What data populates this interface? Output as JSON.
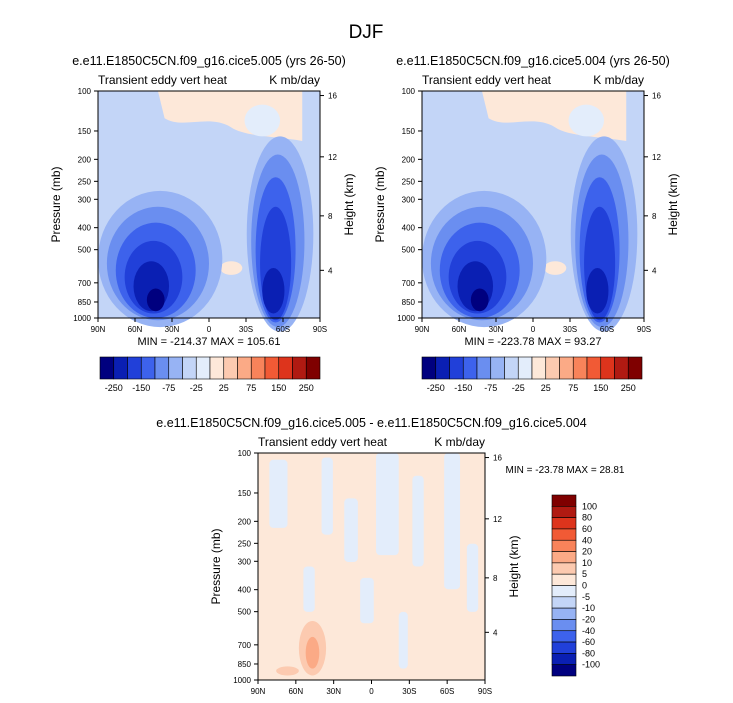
{
  "figure": {
    "title": "DJF"
  },
  "colors": {
    "absolute_scale": [
      "#00007f",
      "#0a1fb3",
      "#2140d9",
      "#3d62ec",
      "#6a8ef0",
      "#97b3f4",
      "#c3d5f7",
      "#e3edfb",
      "#fde8d9",
      "#fccab0",
      "#fbaa86",
      "#f8835a",
      "#f15a35",
      "#dd341c",
      "#b01a12",
      "#7f0000"
    ],
    "difference_scale": [
      "#00007f",
      "#0a1fb3",
      "#2140d9",
      "#3d62ec",
      "#6a8ef0",
      "#97b3f4",
      "#c3d5f7",
      "#e3edfb",
      "#fde8d9",
      "#fccab0",
      "#fbaa86",
      "#f8835a",
      "#f15a35",
      "#dd341c",
      "#b01a12",
      "#7f0000"
    ]
  },
  "colorbars": {
    "absolute": {
      "labels": [
        "-250",
        "-150",
        "-75",
        "-25",
        "25",
        "75",
        "150",
        "250"
      ]
    },
    "difference": {
      "labels": [
        "100",
        "80",
        "60",
        "40",
        "20",
        "10",
        "5",
        "0",
        "-5",
        "-10",
        "-20",
        "-40",
        "-60",
        "-80",
        "-100"
      ]
    }
  },
  "chart_data": [
    {
      "type": "heatmap",
      "title": "e.e11.E1850C5CN.f09_g16.cice5.005 (yrs 26-50)",
      "left_label": "Transient eddy vert heat",
      "right_label": "K mb/day",
      "xlabel": "",
      "ylabel": "Pressure (mb)",
      "ylabel_right": "Height (km)",
      "x_ticks": [
        "90N",
        "60N",
        "30N",
        "0",
        "30S",
        "60S",
        "90S"
      ],
      "y_ticks": [
        "100",
        "150",
        "200",
        "250",
        "300",
        "400",
        "500",
        "700",
        "850",
        "1000"
      ],
      "y_ticks_right": [
        "16",
        "12",
        "8",
        "4"
      ],
      "ylim": [
        1000,
        100
      ],
      "log_y": true,
      "stats": "MIN = -214.37   MAX = 105.61",
      "min": -214.37,
      "max": 105.61
    },
    {
      "type": "heatmap",
      "title": "e.e11.E1850C5CN.f09_g16.cice5.004 (yrs 26-50)",
      "left_label": "Transient eddy vert heat",
      "right_label": "K mb/day",
      "xlabel": "",
      "ylabel": "Pressure (mb)",
      "ylabel_right": "Height (km)",
      "x_ticks": [
        "90N",
        "60N",
        "30N",
        "0",
        "30S",
        "60S",
        "90S"
      ],
      "y_ticks": [
        "100",
        "150",
        "200",
        "250",
        "300",
        "400",
        "500",
        "700",
        "850",
        "1000"
      ],
      "y_ticks_right": [
        "16",
        "12",
        "8",
        "4"
      ],
      "ylim": [
        1000,
        100
      ],
      "log_y": true,
      "stats": "MIN = -223.78   MAX = 93.27",
      "min": -223.78,
      "max": 93.27
    },
    {
      "type": "heatmap",
      "title": "e.e11.E1850C5CN.f09_g16.cice5.005 - e.e11.E1850C5CN.f09_g16.cice5.004",
      "left_label": "Transient eddy vert heat",
      "right_label": "K mb/day",
      "xlabel": "",
      "ylabel": "Pressure (mb)",
      "ylabel_right": "Height (km)",
      "x_ticks": [
        "90N",
        "60N",
        "30N",
        "0",
        "30S",
        "60S",
        "90S"
      ],
      "y_ticks": [
        "100",
        "150",
        "200",
        "250",
        "300",
        "400",
        "500",
        "700",
        "850",
        "1000"
      ],
      "y_ticks_right": [
        "16",
        "12",
        "8",
        "4"
      ],
      "ylim": [
        1000,
        100
      ],
      "log_y": true,
      "stats": "MIN = -23.78   MAX = 28.81",
      "min": -23.78,
      "max": 28.81
    }
  ]
}
